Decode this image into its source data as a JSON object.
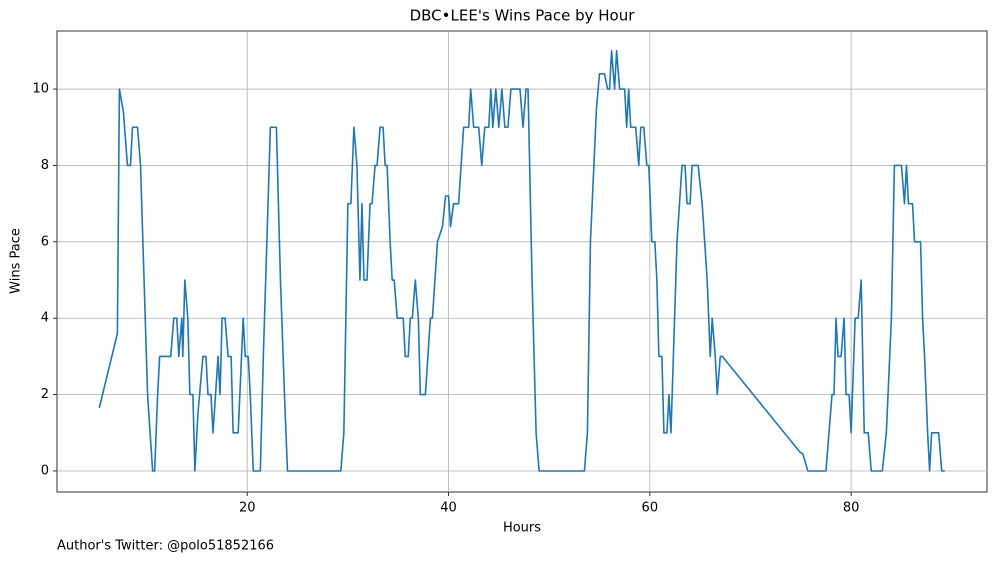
{
  "chart_data": {
    "type": "line",
    "title": "DBC•LEE's Wins Pace by Hour",
    "x_label": "Hours",
    "y_label": "Wins Pace",
    "footnote": "Author's Twitter: @polo51852166",
    "color": "#1f77b4",
    "grid": true,
    "xlim": [
      1.1,
      93.5
    ],
    "ylim": [
      -0.55,
      11.52
    ],
    "xticks": [
      20,
      40,
      60,
      80
    ],
    "yticks": [
      0,
      2,
      4,
      6,
      8,
      10
    ],
    "x": [
      5.3,
      7.1,
      7.3,
      7.7,
      8.1,
      8.4,
      8.6,
      9.1,
      9.4,
      10.1,
      10.6,
      10.8,
      11.1,
      11.3,
      12.4,
      12.7,
      13.0,
      13.2,
      13.5,
      13.6,
      13.8,
      14.1,
      14.3,
      14.6,
      14.8,
      15.1,
      15.6,
      15.9,
      16.1,
      16.4,
      16.6,
      17.1,
      17.3,
      17.5,
      17.8,
      18.1,
      18.4,
      18.6,
      19.1,
      19.6,
      19.8,
      20.1,
      20.3,
      20.6,
      21.3,
      21.6,
      22.3,
      22.9,
      23.3,
      23.7,
      24.0,
      29.3,
      29.6,
      30.0,
      30.3,
      30.6,
      30.9,
      31.2,
      31.4,
      31.6,
      31.9,
      32.2,
      32.4,
      32.7,
      32.9,
      33.2,
      33.5,
      33.7,
      33.9,
      34.2,
      34.4,
      34.6,
      34.9,
      35.5,
      35.7,
      36.0,
      36.2,
      36.4,
      36.7,
      37.0,
      37.2,
      37.7,
      38.2,
      38.4,
      38.9,
      39.4,
      39.7,
      40.0,
      40.2,
      40.5,
      41.0,
      41.5,
      42.0,
      42.2,
      42.5,
      43.0,
      43.3,
      43.6,
      44.0,
      44.2,
      44.4,
      44.7,
      45.0,
      45.3,
      45.6,
      45.9,
      46.2,
      47.1,
      47.4,
      47.7,
      47.9,
      48.3,
      48.7,
      49.0,
      53.5,
      53.8,
      54.1,
      54.7,
      55.0,
      55.5,
      55.8,
      56.0,
      56.2,
      56.5,
      56.7,
      57.0,
      57.5,
      57.7,
      57.9,
      58.1,
      58.6,
      58.9,
      59.1,
      59.4,
      59.7,
      59.9,
      60.2,
      60.5,
      60.7,
      60.9,
      61.2,
      61.4,
      61.7,
      61.9,
      62.1,
      62.7,
      63.2,
      63.5,
      63.7,
      64.0,
      64.2,
      64.8,
      65.2,
      65.7,
      66.0,
      66.2,
      66.5,
      66.7,
      67.0,
      67.2,
      74.9,
      75.2,
      75.7,
      77.5,
      77.8,
      78.1,
      78.3,
      78.5,
      78.7,
      79.0,
      79.3,
      79.5,
      79.8,
      80.0,
      80.4,
      80.7,
      81.0,
      81.3,
      81.7,
      82.0,
      83.1,
      83.5,
      84.0,
      84.3,
      85.0,
      85.3,
      85.5,
      85.7,
      86.1,
      86.3,
      86.9,
      87.1,
      87.3,
      87.6,
      87.8,
      88.0,
      88.7,
      89.0,
      89.3
    ],
    "values": [
      1.65,
      3.6,
      10,
      9.4,
      8,
      8,
      9,
      9,
      8,
      2,
      0,
      0,
      2,
      3,
      3,
      4,
      4,
      3,
      4,
      3,
      5,
      4,
      2,
      2,
      0,
      1.5,
      3,
      3,
      2,
      2,
      1,
      3,
      2,
      4,
      4,
      3,
      3,
      1,
      1,
      4,
      3,
      3,
      2,
      0,
      0,
      3,
      9,
      9,
      5,
      2,
      0,
      0,
      1,
      7,
      7,
      9,
      8,
      5,
      7,
      5,
      5,
      7,
      7,
      8,
      8,
      9,
      9,
      8,
      8,
      6,
      5,
      5,
      4,
      4,
      3,
      3,
      4,
      4,
      5,
      4,
      2,
      2,
      4,
      4,
      6,
      6.4,
      7.2,
      7.2,
      6.4,
      7,
      7,
      9,
      9,
      10,
      9,
      9,
      8,
      9,
      9,
      10,
      9,
      10,
      9,
      10,
      9,
      9,
      10,
      10,
      9,
      10,
      10,
      5,
      1,
      0,
      0,
      1,
      6,
      9.5,
      10.4,
      10.4,
      10,
      10,
      11,
      10,
      11,
      10,
      10,
      9,
      10,
      9,
      9,
      8,
      9,
      9,
      8,
      8,
      6,
      6,
      5,
      3,
      3,
      1,
      1,
      2,
      1,
      6,
      8,
      8,
      7,
      7,
      8,
      8,
      7,
      5,
      3,
      4,
      3,
      2,
      3,
      3,
      0.5,
      0.45,
      0,
      0,
      1,
      2,
      2,
      4,
      3,
      3,
      4,
      2,
      2,
      1,
      4,
      4,
      5,
      1,
      1,
      0,
      0,
      1,
      4,
      8,
      8,
      7,
      8,
      7,
      7,
      6,
      6,
      4,
      3,
      1,
      0,
      1,
      1,
      0,
      0
    ]
  }
}
